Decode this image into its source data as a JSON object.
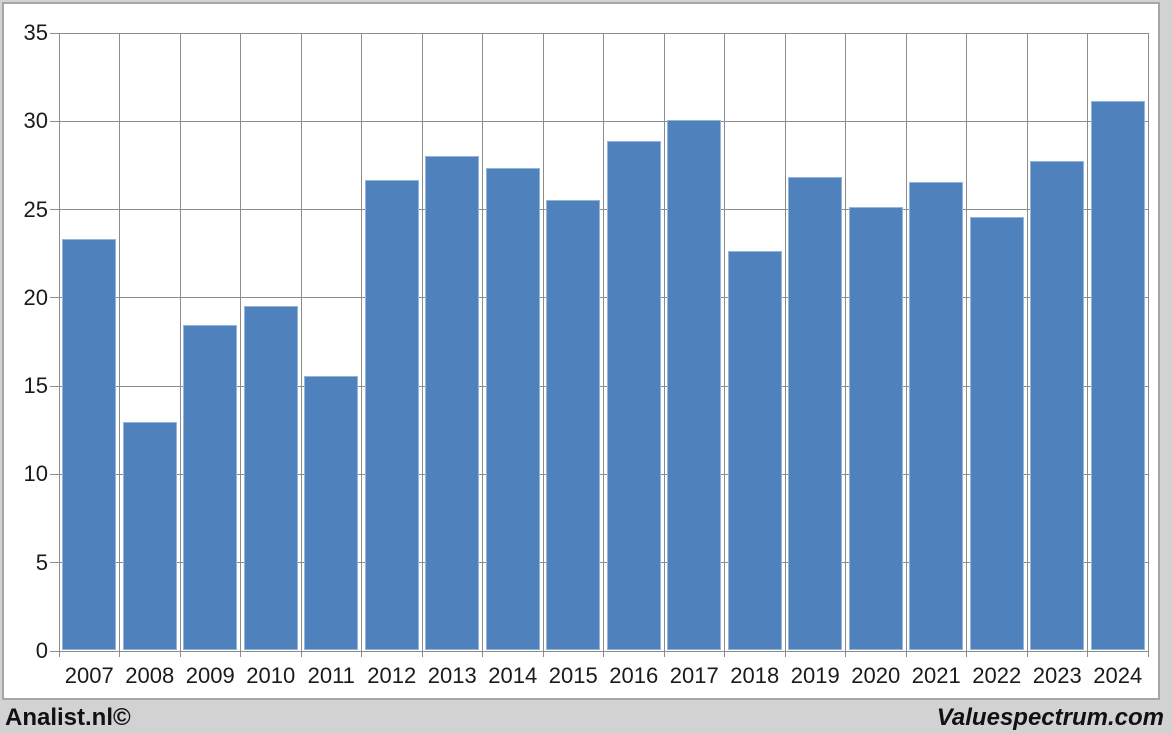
{
  "chart_data": {
    "type": "bar",
    "categories": [
      "2007",
      "2008",
      "2009",
      "2010",
      "2011",
      "2012",
      "2013",
      "2014",
      "2015",
      "2016",
      "2017",
      "2018",
      "2019",
      "2020",
      "2021",
      "2022",
      "2023",
      "2024"
    ],
    "values": [
      23.3,
      12.9,
      18.4,
      19.5,
      15.5,
      26.6,
      28.0,
      27.3,
      25.5,
      28.8,
      30.0,
      22.6,
      26.8,
      25.1,
      26.5,
      24.5,
      27.7,
      31.1
    ],
    "title": "",
    "xlabel": "",
    "ylabel": "",
    "ylim": [
      0,
      35
    ],
    "ytick_step": 5,
    "ytick_labels": [
      "0",
      "5",
      "10",
      "15",
      "20",
      "25",
      "30",
      "35"
    ],
    "grid": true,
    "legend": false,
    "bar_color": "#4f81bd",
    "bar_border_color": "#93b5dc",
    "gridline_color": "#8c8c8c",
    "plot_background": "#ffffff",
    "panel_border_color": "#a6a6a6",
    "page_background": "#d2d2d2"
  },
  "footer": {
    "left": "Analist.nl©",
    "right": "Valuespectrum.com"
  }
}
